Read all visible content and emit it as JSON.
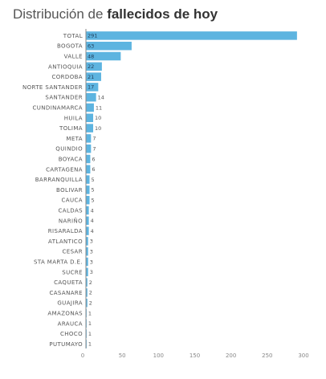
{
  "title": {
    "prefix": "Distribución de",
    "emphasis": "fallecidos de hoy"
  },
  "colors": {
    "bar": "#5db4e0",
    "axis": "#888888",
    "text": "#555555"
  },
  "chart_data": {
    "type": "bar",
    "orientation": "horizontal",
    "title": "Distribución de fallecidos de hoy",
    "categories": [
      "TOTAL",
      "BOGOTA",
      "VALLE",
      "ANTIOQUIA",
      "CORDOBA",
      "NORTE SANTANDER",
      "SANTANDER",
      "CUNDINAMARCA",
      "HUILA",
      "TOLIMA",
      "META",
      "QUINDIO",
      "BOYACA",
      "CARTAGENA",
      "BARRANQUILLA",
      "BOLIVAR",
      "CAUCA",
      "CALDAS",
      "NARIÑO",
      "RISARALDA",
      "ATLANTICO",
      "CESAR",
      "STA MARTA D.E.",
      "SUCRE",
      "CAQUETA",
      "CASANARE",
      "GUAJIRA",
      "AMAZONAS",
      "ARAUCA",
      "CHOCO",
      "PUTUMAYO"
    ],
    "values": [
      291,
      63,
      48,
      22,
      21,
      17,
      14,
      11,
      10,
      10,
      7,
      7,
      6,
      6,
      5,
      5,
      5,
      4,
      4,
      4,
      3,
      3,
      3,
      3,
      2,
      2,
      2,
      1,
      1,
      1,
      1
    ],
    "xlim": [
      0,
      300
    ],
    "xticks": [
      0,
      50,
      100,
      150,
      200,
      250,
      300
    ],
    "grid": false,
    "legend": "none"
  }
}
